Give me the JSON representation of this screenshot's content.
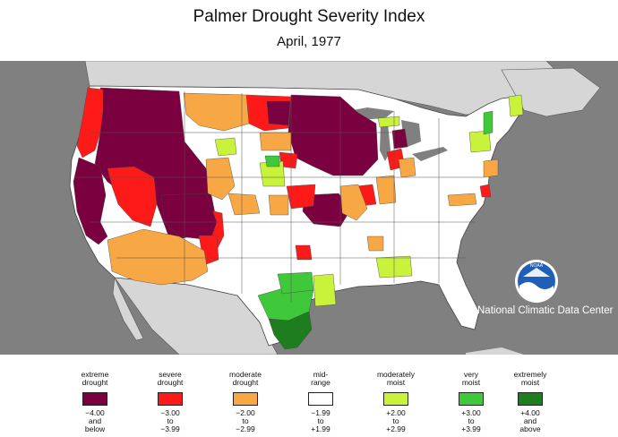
{
  "header": {
    "title": "Palmer Drought Severity Index",
    "subtitle": "April, 1977"
  },
  "credit": "National Climatic Data Center",
  "logo": {
    "icon": "noaa-logo",
    "text": "NOAA"
  },
  "colors": {
    "land": "#ffffff",
    "surrounding": "#d6d6d6",
    "ocean": "#808080",
    "borders": "#444444"
  },
  "legend": [
    {
      "label": "extreme\ndrought",
      "range": "−4.00\nand\nbelow",
      "color": "#7b0040"
    },
    {
      "label": "severe\ndrought",
      "range": "−3.00\nto\n−3.99",
      "color": "#ff1a1a"
    },
    {
      "label": "moderate\ndrought",
      "range": "−2.00\nto\n−2.99",
      "color": "#f7a845"
    },
    {
      "label": "mid-\nrange",
      "range": "−1.99\nto\n+1.99",
      "color": "#ffffff"
    },
    {
      "label": "moderately\nmoist",
      "range": "+2.00\nto\n+2.99",
      "color": "#c9f23a"
    },
    {
      "label": "very\nmoist",
      "range": "+3.00\nto\n+3.99",
      "color": "#3fc83a"
    },
    {
      "label": "extremely\nmoist",
      "range": "+4.00\nand\nabove",
      "color": "#1e7d1e"
    }
  ]
}
